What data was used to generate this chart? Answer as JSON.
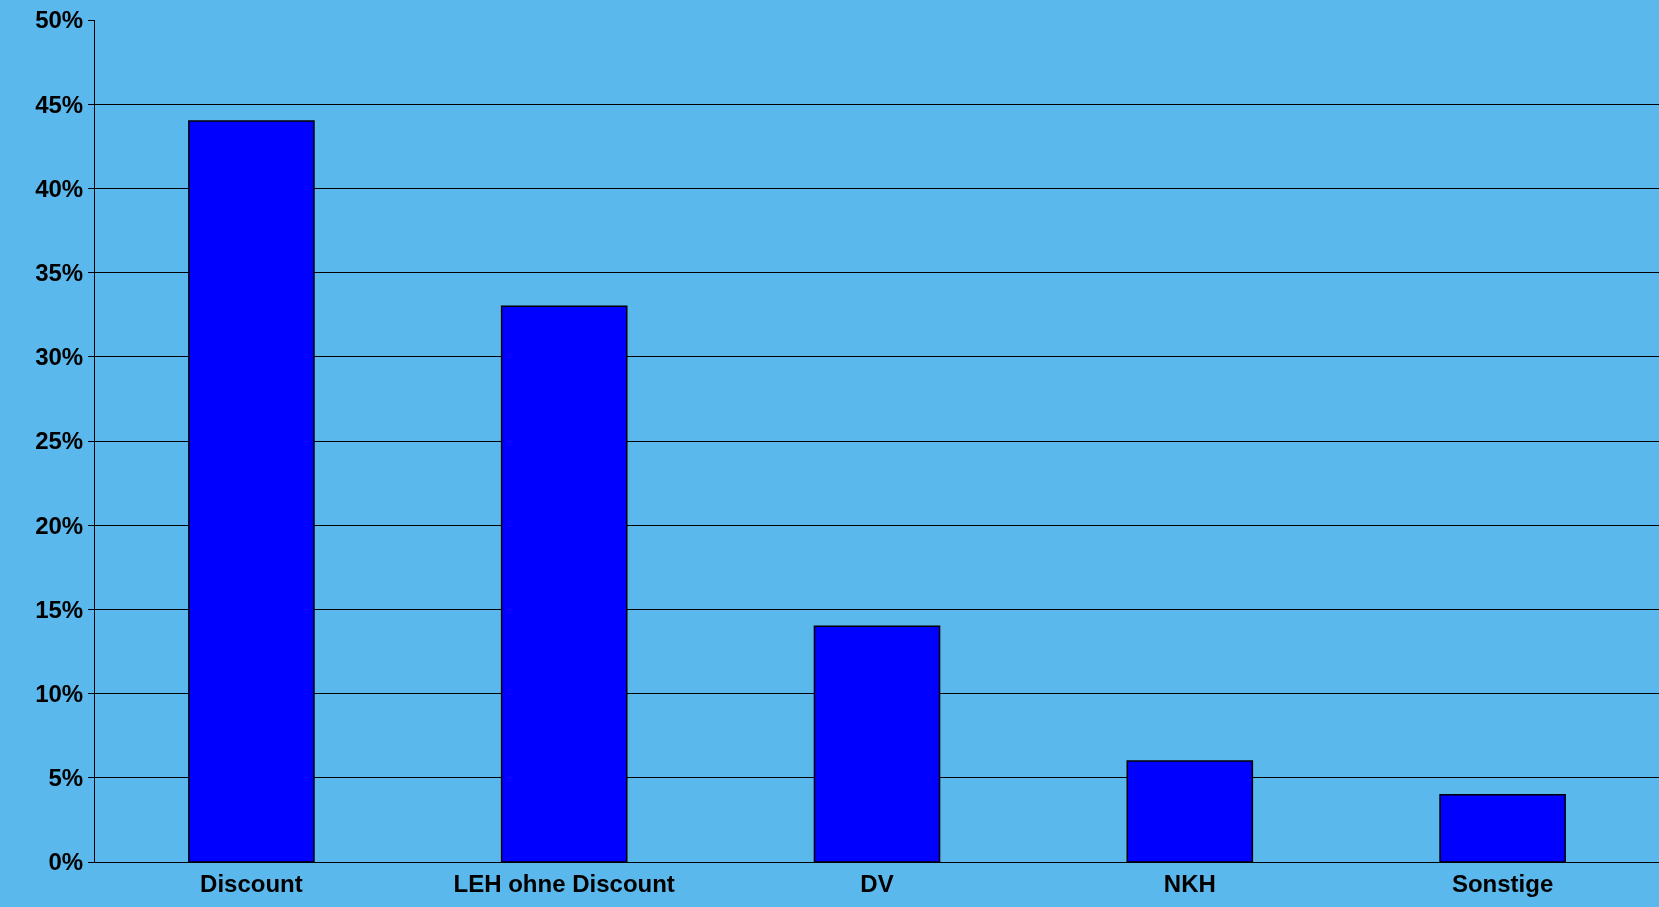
{
  "chart_data": {
    "type": "bar",
    "categories": [
      "Discount",
      "LEH ohne Discount",
      "DV",
      "NKH",
      "Sonstige"
    ],
    "values": [
      44,
      33,
      14,
      6,
      4
    ],
    "color": "#0000ff",
    "ylim": [
      0,
      50
    ],
    "yticks": [
      {
        "value": 0,
        "label": "0%"
      },
      {
        "value": 5,
        "label": "5%"
      },
      {
        "value": 10,
        "label": "10%"
      },
      {
        "value": 15,
        "label": "15%"
      },
      {
        "value": 20,
        "label": "20%"
      },
      {
        "value": 25,
        "label": "25%"
      },
      {
        "value": 30,
        "label": "30%"
      },
      {
        "value": 35,
        "label": "35%"
      },
      {
        "value": 40,
        "label": "40%"
      },
      {
        "value": 45,
        "label": "45%"
      },
      {
        "value": 50,
        "label": "50%"
      }
    ],
    "grid": "y",
    "legend": false
  }
}
